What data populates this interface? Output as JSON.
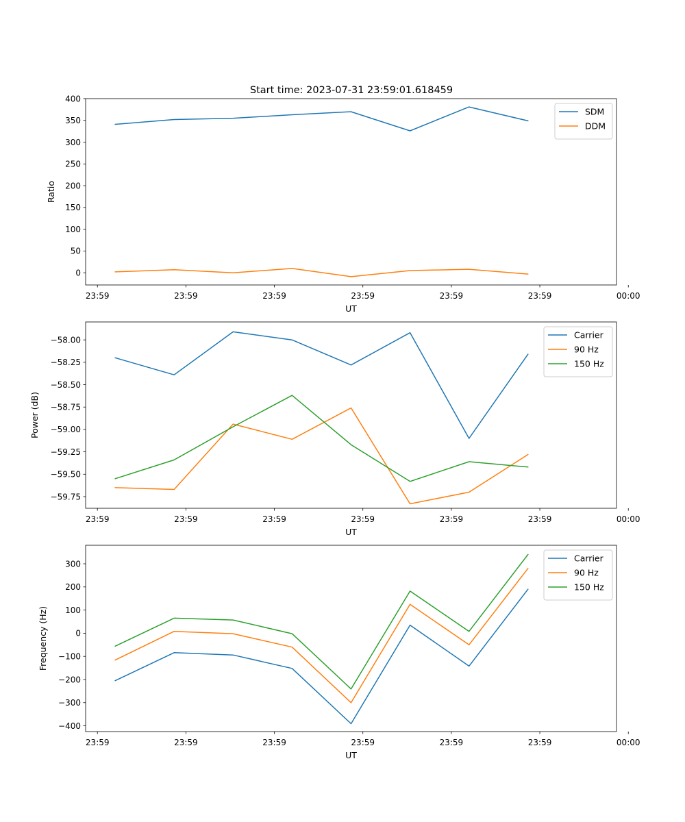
{
  "figure": {
    "title": "Start time: 2023-07-31 23:59:01.618459"
  },
  "colors": {
    "series1": "#1f77b4",
    "series2": "#ff7f0e",
    "series3": "#2ca02c"
  },
  "chart_data": [
    {
      "type": "line",
      "title": "Start time: 2023-07-31 23:59:01.618459",
      "xlabel": "UT",
      "ylabel": "Ratio",
      "x": [
        1,
        2,
        3,
        4,
        5,
        6,
        7,
        8
      ],
      "xlim": [
        0.5,
        9.5
      ],
      "xticks": [
        0.7,
        2.2,
        3.7,
        5.2,
        6.7,
        8.2,
        9.7
      ],
      "xticklabels": [
        "23:59",
        "23:59",
        "23:59",
        "23:59",
        "23:59",
        "23:59",
        "00:00"
      ],
      "ylim": [
        -28,
        400
      ],
      "yticks": [
        0,
        50,
        100,
        150,
        200,
        250,
        300,
        350,
        400
      ],
      "yticklabels": [
        "0",
        "50",
        "100",
        "150",
        "200",
        "250",
        "300",
        "350",
        "400"
      ],
      "legend_position": "top-right",
      "series": [
        {
          "name": "SDM",
          "color_key": "series1",
          "values": [
            341,
            352,
            355,
            363,
            370,
            326,
            381,
            349
          ]
        },
        {
          "name": "DDM",
          "color_key": "series2",
          "values": [
            2,
            7,
            0,
            10,
            -9,
            5,
            8,
            -3
          ]
        }
      ]
    },
    {
      "type": "line",
      "title": "",
      "xlabel": "UT",
      "ylabel": "Power (dB)",
      "x": [
        1,
        2,
        3,
        4,
        5,
        6,
        7,
        8
      ],
      "xlim": [
        0.5,
        9.5
      ],
      "xticks": [
        0.7,
        2.2,
        3.7,
        5.2,
        6.7,
        8.2,
        9.7
      ],
      "xticklabels": [
        "23:59",
        "23:59",
        "23:59",
        "23:59",
        "23:59",
        "23:59",
        "00:00"
      ],
      "ylim": [
        -59.88,
        -57.8
      ],
      "yticks": [
        -59.75,
        -59.5,
        -59.25,
        -59.0,
        -58.75,
        -58.5,
        -58.25,
        -58.0
      ],
      "yticklabels": [
        "−59.75",
        "−59.50",
        "−59.25",
        "−59.00",
        "−58.75",
        "−58.50",
        "−58.25",
        "−58.00"
      ],
      "legend_position": "top-right",
      "series": [
        {
          "name": "Carrier",
          "color_key": "series1",
          "values": [
            -58.2,
            -58.39,
            -57.91,
            -58.0,
            -58.28,
            -57.92,
            -59.1,
            -58.16
          ]
        },
        {
          "name": "90 Hz",
          "color_key": "series2",
          "values": [
            -59.65,
            -59.67,
            -58.94,
            -59.11,
            -58.76,
            -59.83,
            -59.7,
            -59.28
          ]
        },
        {
          "name": "150 Hz",
          "color_key": "series3",
          "values": [
            -59.55,
            -59.34,
            -58.97,
            -58.62,
            -59.17,
            -59.58,
            -59.36,
            -59.42
          ]
        }
      ]
    },
    {
      "type": "line",
      "title": "",
      "xlabel": "UT",
      "ylabel": "Frequency (Hz)",
      "x": [
        1,
        2,
        3,
        4,
        5,
        6,
        7,
        8
      ],
      "xlim": [
        0.5,
        9.5
      ],
      "xticks": [
        0.7,
        2.2,
        3.7,
        5.2,
        6.7,
        8.2,
        9.7
      ],
      "xticklabels": [
        "23:59",
        "23:59",
        "23:59",
        "23:59",
        "23:59",
        "23:59",
        "00:00"
      ],
      "ylim": [
        -425,
        380
      ],
      "yticks": [
        -400,
        -300,
        -200,
        -100,
        0,
        100,
        200,
        300
      ],
      "yticklabels": [
        "−400",
        "−300",
        "−200",
        "−100",
        "0",
        "100",
        "200",
        "300"
      ],
      "legend_position": "top-right",
      "series": [
        {
          "name": "Carrier",
          "color_key": "series1",
          "values": [
            -205,
            -84,
            -94,
            -152,
            -391,
            35,
            -142,
            190
          ]
        },
        {
          "name": "90 Hz",
          "color_key": "series2",
          "values": [
            -116,
            8,
            -2,
            -60,
            -300,
            125,
            -50,
            280
          ]
        },
        {
          "name": "150 Hz",
          "color_key": "series3",
          "values": [
            -56,
            65,
            57,
            -2,
            -241,
            182,
            8,
            340
          ]
        }
      ]
    }
  ]
}
